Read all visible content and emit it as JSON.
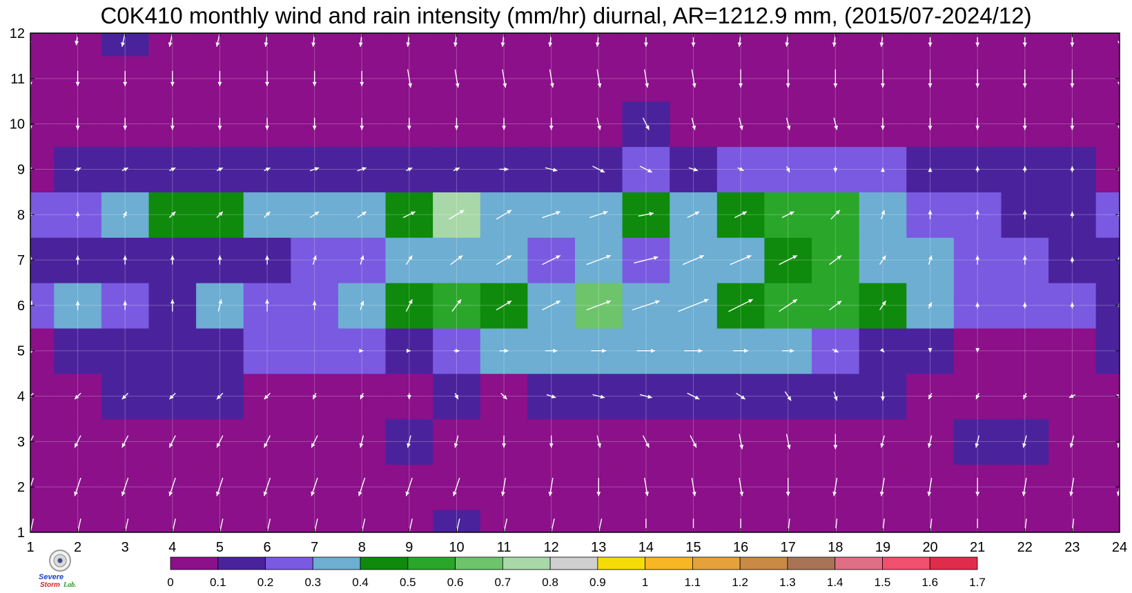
{
  "chart_data": {
    "type": "heatmap",
    "title": "C0K410 monthly wind and rain intensity (mm/hr) diurnal, AR=1212.9 mm, (2015/07-2024/12)",
    "x_ticks": [
      1,
      2,
      3,
      4,
      5,
      6,
      7,
      8,
      9,
      10,
      11,
      12,
      13,
      14,
      15,
      16,
      17,
      18,
      19,
      20,
      21,
      22,
      23,
      24
    ],
    "y_ticks": [
      1,
      2,
      3,
      4,
      5,
      6,
      7,
      8,
      9,
      10,
      11,
      12
    ],
    "xlim": [
      1,
      24
    ],
    "ylim": [
      1,
      12
    ],
    "colorbar": {
      "levels": [
        "0",
        "0.1",
        "0.2",
        "0.3",
        "0.4",
        "0.5",
        "0.6",
        "0.7",
        "0.8",
        "0.9",
        "1",
        "1.1",
        "1.2",
        "1.3",
        "1.4",
        "1.5",
        "1.6",
        "1.7"
      ],
      "colors": [
        "#8b1089",
        "#4a239c",
        "#7a5ae0",
        "#6daed2",
        "#0f8a0c",
        "#2aa62a",
        "#6dc46a",
        "#a8d8a8",
        "#cfcfcf",
        "#f6dc06",
        "#f7b623",
        "#e3a33a",
        "#c88a45",
        "#a97456",
        "#df6f85",
        "#f04f6d",
        "#e02c4a"
      ]
    },
    "grid": true,
    "wind_field": "white arrows on 1-hour x 1-month grid",
    "intensity": [
      [
        0.05,
        0.04,
        0.04,
        0.05,
        0.05,
        0.05,
        0.04,
        0.04,
        0.06,
        0.12,
        0.06,
        0.05,
        0.04,
        0.04,
        0.04,
        0.04,
        0.04,
        0.05,
        0.05,
        0.05,
        0.04,
        0.04,
        0.04,
        0.04
      ],
      [
        0.04,
        0.04,
        0.04,
        0.04,
        0.04,
        0.04,
        0.04,
        0.04,
        0.04,
        0.04,
        0.04,
        0.04,
        0.04,
        0.04,
        0.04,
        0.04,
        0.04,
        0.04,
        0.04,
        0.04,
        0.04,
        0.04,
        0.04,
        0.04
      ],
      [
        0.04,
        0.05,
        0.06,
        0.08,
        0.08,
        0.06,
        0.05,
        0.08,
        0.1,
        0.05,
        0.05,
        0.06,
        0.06,
        0.06,
        0.09,
        0.05,
        0.05,
        0.04,
        0.05,
        0.06,
        0.1,
        0.11,
        0.06,
        0.05
      ],
      [
        0.05,
        0.08,
        0.1,
        0.19,
        0.14,
        0.09,
        0.08,
        0.06,
        0.06,
        0.12,
        0.09,
        0.14,
        0.1,
        0.14,
        0.13,
        0.14,
        0.12,
        0.1,
        0.1,
        0.06,
        0.06,
        0.06,
        0.05,
        0.05
      ],
      [
        0.09,
        0.11,
        0.15,
        0.18,
        0.18,
        0.22,
        0.21,
        0.2,
        0.19,
        0.21,
        0.3,
        0.31,
        0.3,
        0.31,
        0.31,
        0.32,
        0.36,
        0.24,
        0.15,
        0.1,
        0.09,
        0.08,
        0.09,
        0.1
      ],
      [
        0.2,
        0.36,
        0.23,
        0.19,
        0.37,
        0.22,
        0.26,
        0.31,
        0.47,
        0.52,
        0.42,
        0.37,
        0.68,
        0.38,
        0.38,
        0.41,
        0.51,
        0.54,
        0.4,
        0.31,
        0.29,
        0.25,
        0.29,
        0.18
      ],
      [
        0.16,
        0.14,
        0.14,
        0.14,
        0.17,
        0.19,
        0.21,
        0.28,
        0.36,
        0.38,
        0.33,
        0.25,
        0.34,
        0.27,
        0.36,
        0.39,
        0.43,
        0.5,
        0.33,
        0.31,
        0.29,
        0.25,
        0.19,
        0.15
      ],
      [
        0.24,
        0.25,
        0.32,
        0.45,
        0.42,
        0.32,
        0.32,
        0.32,
        0.45,
        0.71,
        0.37,
        0.31,
        0.31,
        0.44,
        0.32,
        0.42,
        0.52,
        0.5,
        0.31,
        0.2,
        0.2,
        0.14,
        0.13,
        0.23
      ],
      [
        0.09,
        0.11,
        0.14,
        0.17,
        0.15,
        0.17,
        0.14,
        0.14,
        0.16,
        0.16,
        0.16,
        0.12,
        0.13,
        0.22,
        0.17,
        0.24,
        0.27,
        0.28,
        0.2,
        0.13,
        0.1,
        0.12,
        0.11,
        0.09
      ],
      [
        0.05,
        0.05,
        0.05,
        0.05,
        0.05,
        0.05,
        0.05,
        0.05,
        0.05,
        0.05,
        0.05,
        0.05,
        0.06,
        0.11,
        0.08,
        0.06,
        0.06,
        0.06,
        0.05,
        0.05,
        0.05,
        0.05,
        0.05,
        0.05
      ],
      [
        0.03,
        0.03,
        0.03,
        0.03,
        0.03,
        0.03,
        0.03,
        0.03,
        0.03,
        0.03,
        0.03,
        0.03,
        0.03,
        0.03,
        0.03,
        0.03,
        0.03,
        0.03,
        0.03,
        0.03,
        0.03,
        0.03,
        0.03,
        0.03
      ],
      [
        0.04,
        0.04,
        0.12,
        0.04,
        0.04,
        0.04,
        0.04,
        0.04,
        0.04,
        0.04,
        0.04,
        0.04,
        0.04,
        0.04,
        0.04,
        0.04,
        0.04,
        0.04,
        0.04,
        0.04,
        0.04,
        0.04,
        0.04,
        0.04
      ]
    ],
    "wind_u": [
      [
        -0.2,
        -0.2,
        -0.2,
        -0.2,
        -0.2,
        -0.2,
        -0.2,
        -0.2,
        -0.2,
        -0.2,
        -0.2,
        -0.2,
        -0.2,
        0,
        0,
        0,
        -0.1,
        -0.1,
        -0.1,
        -0.1,
        0,
        -0.1,
        -0.1,
        -0.1
      ],
      [
        -0.2,
        -0.2,
        -0.2,
        -0.2,
        -0.2,
        -0.2,
        -0.2,
        -0.2,
        -0.2,
        -0.2,
        -0.1,
        -0.1,
        0,
        0.1,
        0.1,
        0.1,
        0,
        -0.1,
        -0.1,
        -0.1,
        0,
        -0.1,
        -0.1,
        -0.1
      ],
      [
        -0.2,
        -0.2,
        -0.2,
        -0.2,
        -0.2,
        -0.2,
        -0.2,
        -0.1,
        -0.1,
        -0.1,
        0,
        0,
        0.1,
        0.2,
        0.2,
        0.1,
        0.1,
        0,
        -0.1,
        -0.1,
        -0.1,
        -0.1,
        -0.1,
        -0.1
      ],
      [
        -0.2,
        -0.2,
        -0.2,
        -0.2,
        -0.2,
        -0.2,
        -0.1,
        -0.1,
        0,
        0.1,
        0.2,
        0.3,
        0.4,
        0.4,
        0.4,
        0.3,
        0.2,
        0.1,
        0,
        -0.1,
        -0.1,
        -0.1,
        -0.2,
        -0.2
      ],
      [
        -0.1,
        0,
        0,
        0,
        0,
        0,
        0,
        0.1,
        0.1,
        0.2,
        0.3,
        0.4,
        0.5,
        0.6,
        0.6,
        0.5,
        0.4,
        0.2,
        0.1,
        0,
        0,
        0,
        0,
        0
      ],
      [
        0.1,
        0,
        0,
        0,
        0.1,
        0,
        0,
        0.1,
        0.2,
        0.3,
        0.5,
        0.6,
        0.8,
        0.9,
        1,
        0.8,
        0.6,
        0.4,
        0.2,
        0.1,
        0,
        0,
        0,
        0
      ],
      [
        0,
        0,
        0,
        0,
        0,
        0,
        0.1,
        0.1,
        0.2,
        0.4,
        0.5,
        0.6,
        0.8,
        0.8,
        0.7,
        0.7,
        0.6,
        0.4,
        0.2,
        0.1,
        0,
        0,
        0,
        0
      ],
      [
        0,
        0,
        0.1,
        0.2,
        0.2,
        0.2,
        0.3,
        0.3,
        0.4,
        0.5,
        0.5,
        0.6,
        0.6,
        0.5,
        0.4,
        0.4,
        0.4,
        0.3,
        0.1,
        0,
        0,
        0,
        0,
        0
      ],
      [
        0.1,
        0.2,
        0.2,
        0.2,
        0.2,
        0.2,
        0.3,
        0.3,
        0.2,
        0.2,
        0.3,
        0.4,
        0.4,
        0.4,
        0.3,
        0.2,
        0.1,
        0,
        0,
        0,
        0,
        0,
        0,
        0
      ],
      [
        0,
        0,
        0,
        0,
        0,
        0,
        0,
        0,
        0,
        0,
        0,
        0,
        0.1,
        0.2,
        0.1,
        0.1,
        0.1,
        0.1,
        0,
        0,
        0,
        0,
        0,
        0
      ],
      [
        0,
        0,
        0,
        0,
        0,
        0,
        0,
        0,
        0.1,
        0.1,
        0.1,
        0.1,
        0.1,
        0.1,
        0.1,
        0,
        0,
        0,
        0,
        0,
        0,
        0,
        0,
        0
      ],
      [
        -0.1,
        -0.1,
        -0.2,
        -0.2,
        -0.2,
        -0.1,
        -0.1,
        -0.1,
        -0.1,
        -0.1,
        -0.1,
        -0.1,
        -0.1,
        0,
        0,
        -0.1,
        -0.1,
        -0.1,
        -0.1,
        0,
        0,
        0,
        0,
        0
      ]
    ],
    "wind_v": [
      [
        -0.9,
        -0.9,
        -0.9,
        -0.9,
        -0.9,
        -0.9,
        -0.9,
        -0.9,
        -0.9,
        -0.9,
        -0.9,
        -0.9,
        -0.9,
        -0.9,
        -0.9,
        -0.9,
        -0.9,
        -0.9,
        -0.9,
        -0.9,
        -0.9,
        -0.9,
        -0.9,
        -0.8
      ],
      [
        -0.6,
        -0.6,
        -0.6,
        -0.6,
        -0.6,
        -0.6,
        -0.6,
        -0.6,
        -0.6,
        -0.6,
        -0.6,
        -0.6,
        -0.6,
        -0.6,
        -0.6,
        -0.6,
        -0.6,
        -0.6,
        -0.6,
        -0.6,
        -0.6,
        -0.6,
        -0.6,
        -0.6
      ],
      [
        -0.4,
        -0.4,
        -0.4,
        -0.4,
        -0.4,
        -0.4,
        -0.4,
        -0.4,
        -0.4,
        -0.4,
        -0.4,
        -0.4,
        -0.4,
        -0.4,
        -0.4,
        -0.5,
        -0.5,
        -0.5,
        -0.4,
        -0.4,
        -0.4,
        -0.4,
        -0.4,
        -0.4
      ],
      [
        -0.2,
        -0.2,
        -0.2,
        -0.2,
        -0.2,
        -0.2,
        -0.2,
        -0.2,
        -0.2,
        -0.2,
        -0.2,
        -0.1,
        -0.1,
        -0.1,
        -0.2,
        -0.2,
        -0.3,
        -0.3,
        -0.3,
        -0.2,
        -0.2,
        -0.2,
        -0.1,
        0.1
      ],
      [
        0.1,
        0,
        0,
        0,
        0,
        0,
        0,
        0,
        0,
        0,
        0,
        0,
        0,
        0,
        0,
        0,
        0,
        -0.1,
        -0.1,
        -0.1,
        -0.1,
        0,
        0,
        0
      ],
      [
        0.3,
        0.3,
        0.3,
        0.4,
        0.4,
        0.4,
        0.3,
        0.3,
        0.4,
        0.4,
        0.3,
        0.3,
        0.3,
        0.3,
        0.4,
        0.4,
        0.4,
        0.3,
        0.3,
        0.2,
        0.2,
        0.2,
        0.2,
        0.2
      ],
      [
        0.3,
        0.3,
        0.3,
        0.3,
        0.3,
        0.3,
        0.3,
        0.3,
        0.3,
        0.3,
        0.3,
        0.3,
        0.3,
        0.2,
        0.3,
        0.3,
        0.3,
        0.3,
        0.3,
        0.3,
        0.3,
        0.3,
        0.2,
        0.3
      ],
      [
        0.2,
        0.2,
        0.2,
        0.2,
        0.2,
        0.2,
        0.2,
        0.2,
        0.2,
        0.3,
        0.3,
        0.2,
        0.2,
        0.1,
        0.2,
        0.2,
        0.2,
        0.3,
        0.3,
        0.3,
        0.3,
        0.3,
        0.2,
        0.2
      ],
      [
        0.1,
        0.1,
        0.1,
        0.1,
        0.1,
        0.1,
        0.1,
        0.1,
        0.1,
        0.1,
        0,
        -0.1,
        -0.2,
        -0.2,
        -0.1,
        -0.1,
        -0.2,
        -0.2,
        0.1,
        0.1,
        0.2,
        0.2,
        0.2,
        0.2
      ],
      [
        -0.4,
        -0.4,
        -0.4,
        -0.4,
        -0.4,
        -0.4,
        -0.4,
        -0.4,
        -0.4,
        -0.4,
        -0.4,
        -0.4,
        -0.4,
        -0.4,
        -0.4,
        -0.4,
        -0.4,
        -0.4,
        -0.4,
        -0.4,
        -0.4,
        -0.4,
        -0.4,
        -0.4
      ],
      [
        -0.5,
        -0.5,
        -0.5,
        -0.5,
        -0.5,
        -0.5,
        -0.5,
        -0.5,
        -0.6,
        -0.6,
        -0.6,
        -0.6,
        -0.6,
        -0.6,
        -0.6,
        -0.6,
        -0.6,
        -0.6,
        -0.6,
        -0.6,
        -0.6,
        -0.6,
        -0.6,
        -0.5
      ],
      [
        -0.8,
        -0.8,
        -0.9,
        -0.9,
        -0.9,
        -0.9,
        -0.9,
        -0.9,
        -0.9,
        -0.9,
        -0.9,
        -0.9,
        -0.9,
        -0.9,
        -0.9,
        -0.9,
        -0.9,
        -0.9,
        -0.9,
        -0.9,
        -0.9,
        -0.9,
        -0.9,
        -0.8
      ]
    ]
  },
  "logo": {
    "line1": "Severe",
    "line2": "Storm",
    "line3": "Lab.",
    "colors": [
      "#1d3fc4",
      "#d21f1f",
      "#2a9a2a"
    ]
  }
}
